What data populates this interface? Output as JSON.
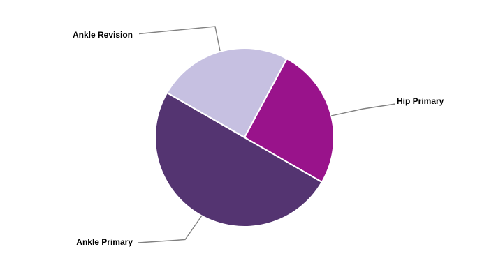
{
  "chart_data": {
    "type": "pie",
    "title": "",
    "slices": [
      {
        "label": "Ankle Revision",
        "value": 24.5,
        "color": "#c6c0e1"
      },
      {
        "label": "Hip Primary",
        "value": 25.5,
        "color": "#99138b"
      },
      {
        "label": "Ankle Primary",
        "value": 50.0,
        "color": "#543471"
      }
    ],
    "values_are": "estimated percent share (no data labels shown in chart)",
    "start_angle_deg": 150,
    "direction": "clockwise",
    "legend_position": "none",
    "labels_style": "external labels with gray leader lines",
    "leader_line_color": "#808080",
    "separator_color": "#ffffff",
    "background_color": "#ffffff",
    "label_color": "#000000"
  }
}
